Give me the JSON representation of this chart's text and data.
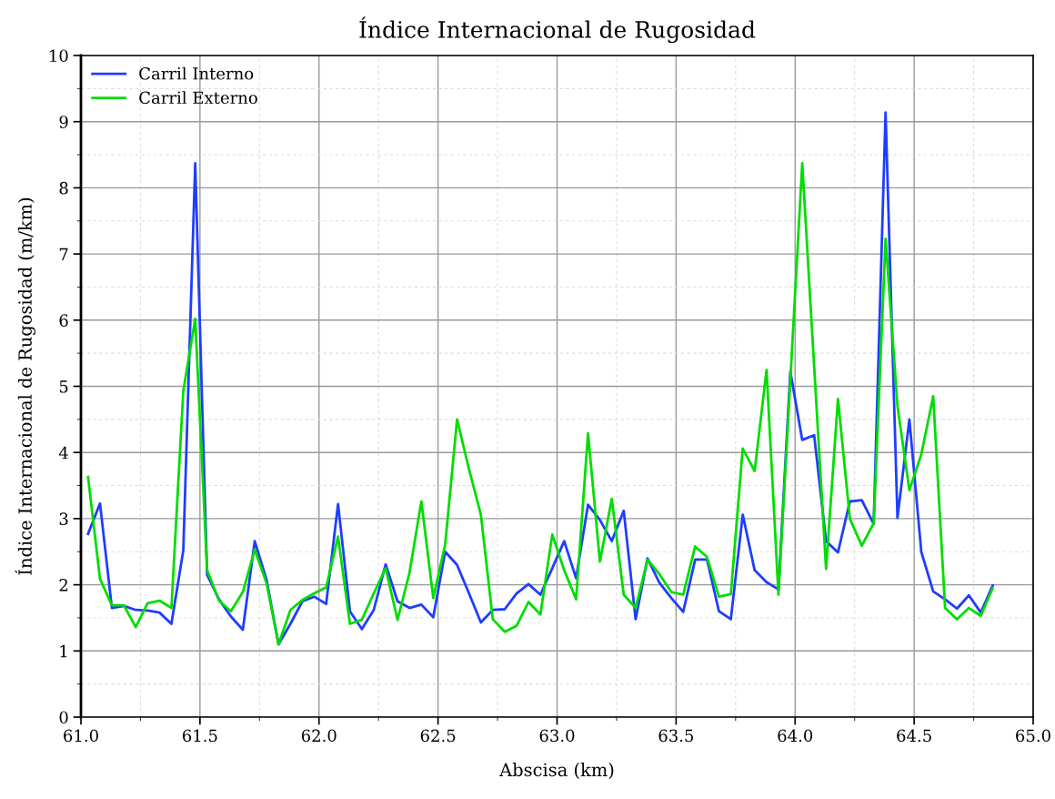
{
  "chart_data": {
    "type": "line",
    "title": "Índice Internacional de Rugosidad",
    "xlabel": "Abscisa (km)",
    "ylabel": "Índice Internacional de Rugosidad (m/km)",
    "x": [
      61.03,
      61.08,
      61.13,
      61.18,
      61.23,
      61.28,
      61.33,
      61.38,
      61.43,
      61.48,
      61.53,
      61.58,
      61.63,
      61.68,
      61.73,
      61.78,
      61.83,
      61.88,
      61.93,
      61.98,
      62.03,
      62.08,
      62.13,
      62.18,
      62.23,
      62.28,
      62.33,
      62.38,
      62.43,
      62.48,
      62.53,
      62.58,
      62.63,
      62.68,
      62.73,
      62.78,
      62.83,
      62.88,
      62.93,
      62.98,
      63.03,
      63.08,
      63.13,
      63.18,
      63.23,
      63.28,
      63.33,
      63.38,
      63.43,
      63.48,
      63.53,
      63.58,
      63.63,
      63.68,
      63.73,
      63.78,
      63.83,
      63.88,
      63.93,
      63.98,
      64.03,
      64.08,
      64.13,
      64.18,
      64.23,
      64.28,
      64.33,
      64.38,
      64.43,
      64.48,
      64.53,
      64.58,
      64.63,
      64.68,
      64.73,
      64.78,
      64.83
    ],
    "series": [
      {
        "name": "Carril Interno",
        "color": "#1f3dff",
        "values": [
          2.77,
          3.23,
          1.65,
          1.68,
          1.62,
          1.61,
          1.58,
          1.41,
          2.52,
          8.37,
          2.15,
          1.78,
          1.52,
          1.32,
          2.66,
          2.07,
          1.1,
          1.41,
          1.75,
          1.82,
          1.71,
          3.22,
          1.6,
          1.33,
          1.62,
          2.31,
          1.75,
          1.65,
          1.7,
          1.51,
          2.5,
          2.3,
          1.87,
          1.43,
          1.62,
          1.63,
          1.87,
          2.01,
          1.85,
          2.25,
          2.66,
          2.1,
          3.21,
          2.98,
          2.66,
          3.12,
          1.48,
          2.4,
          2.03,
          1.8,
          1.59,
          2.38,
          2.38,
          1.6,
          1.48,
          3.06,
          2.22,
          2.04,
          1.93,
          5.22,
          4.19,
          4.26,
          2.66,
          2.49,
          3.26,
          3.28,
          2.92,
          9.14,
          3.01,
          4.5,
          2.5,
          1.9,
          1.78,
          1.64,
          1.84,
          1.58,
          1.99
        ]
      },
      {
        "name": "Carril Externo",
        "color": "#00dd00",
        "values": [
          3.63,
          2.09,
          1.69,
          1.69,
          1.36,
          1.72,
          1.76,
          1.65,
          4.93,
          6.02,
          2.22,
          1.76,
          1.6,
          1.89,
          2.53,
          2.02,
          1.1,
          1.62,
          1.77,
          1.87,
          1.96,
          2.73,
          1.41,
          1.47,
          1.87,
          2.25,
          1.47,
          2.18,
          3.26,
          1.8,
          2.61,
          4.5,
          3.75,
          3.06,
          1.48,
          1.29,
          1.38,
          1.74,
          1.55,
          2.76,
          2.22,
          1.78,
          4.29,
          2.35,
          3.3,
          1.85,
          1.65,
          2.38,
          2.16,
          1.89,
          1.85,
          2.58,
          2.42,
          1.82,
          1.86,
          4.06,
          3.72,
          5.25,
          1.85,
          5.1,
          8.37,
          5.3,
          2.24,
          4.81,
          3.0,
          2.59,
          2.93,
          7.23,
          4.7,
          3.43,
          3.97,
          4.85,
          1.65,
          1.48,
          1.65,
          1.53,
          1.95
        ]
      }
    ],
    "xlim": [
      61.0,
      65.0
    ],
    "xticks": [
      {
        "value": 61.0,
        "label": "61.0"
      },
      {
        "value": 61.5,
        "label": "61.5"
      },
      {
        "value": 62.0,
        "label": "62.0"
      },
      {
        "value": 62.5,
        "label": "62.5"
      },
      {
        "value": 63.0,
        "label": "63.0"
      },
      {
        "value": 63.5,
        "label": "63.5"
      },
      {
        "value": 64.0,
        "label": "64.0"
      },
      {
        "value": 64.5,
        "label": "64.5"
      },
      {
        "value": 65.0,
        "label": "65.0"
      }
    ],
    "ylim": [
      0,
      10
    ],
    "yticks": [
      0,
      1,
      2,
      3,
      4,
      5,
      6,
      7,
      8,
      9,
      10
    ],
    "grid": true,
    "legend": "top left",
    "marker": "none",
    "line_style": "solid"
  }
}
